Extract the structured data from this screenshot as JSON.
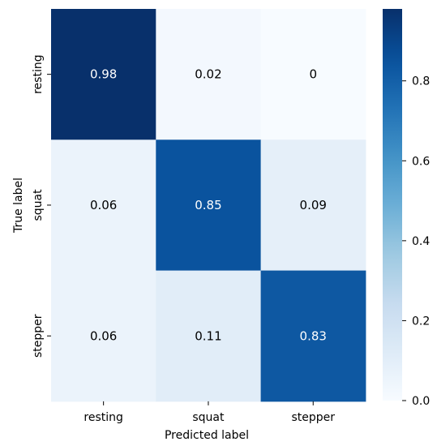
{
  "chart_data": {
    "type": "heatmap",
    "x_categories": [
      "resting",
      "squat",
      "stepper"
    ],
    "y_categories": [
      "resting",
      "squat",
      "stepper"
    ],
    "values": [
      [
        0.98,
        0.02,
        0
      ],
      [
        0.06,
        0.85,
        0.09
      ],
      [
        0.06,
        0.11,
        0.83
      ]
    ],
    "cell_labels": [
      [
        "0.98",
        "0.02",
        "0"
      ],
      [
        "0.06",
        "0.85",
        "0.09"
      ],
      [
        "0.06",
        "0.11",
        "0.83"
      ]
    ],
    "xlabel": "Predicted label",
    "ylabel": "True label",
    "colormap": "Blues",
    "vmin": 0.0,
    "vmax": 0.98,
    "colorbar_ticks": [
      0.0,
      0.2,
      0.4,
      0.6,
      0.8
    ],
    "colorbar_tick_labels": [
      "0.0",
      "0.2",
      "0.4",
      "0.6",
      "0.8"
    ]
  }
}
